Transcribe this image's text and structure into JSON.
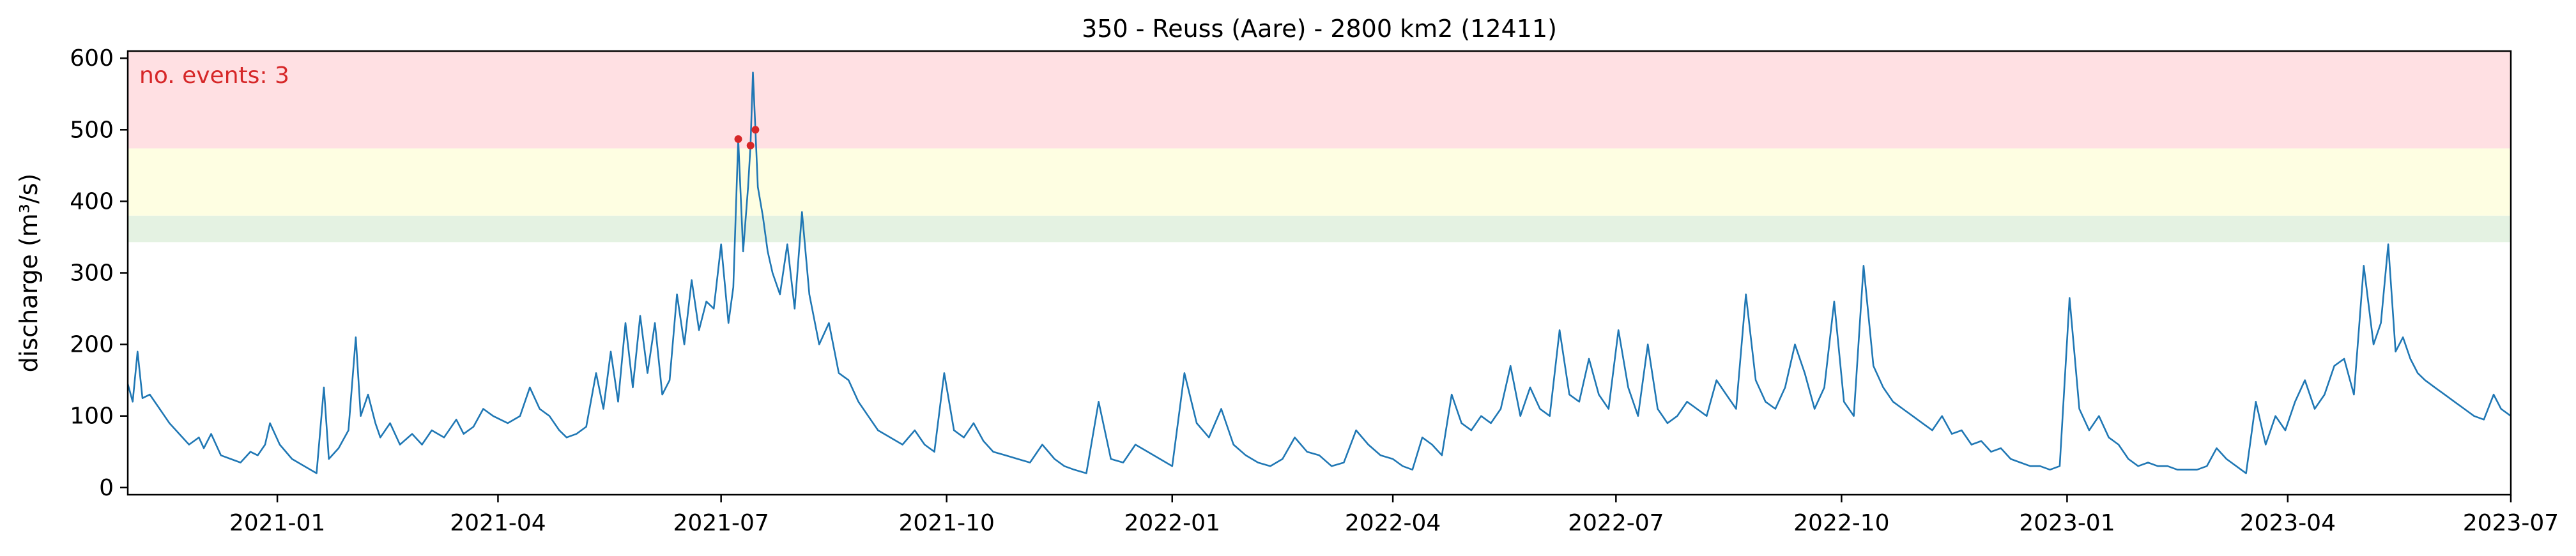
{
  "chart_data": {
    "type": "line",
    "title": "350 - Reuss (Aare) - 2800 km2 (12411)",
    "xlabel": "",
    "ylabel": "discharge (m³/s)",
    "xlim": [
      "2020-11-01",
      "2023-07-01"
    ],
    "ylim": [
      -10,
      610
    ],
    "x_ticks": [
      "2021-01",
      "2021-04",
      "2021-07",
      "2021-10",
      "2022-01",
      "2022-04",
      "2022-07",
      "2022-10",
      "2023-01",
      "2023-04",
      "2023-07"
    ],
    "y_ticks": [
      "0",
      "100",
      "200",
      "300",
      "400",
      "500",
      "600"
    ],
    "annotation": "no. events: 3",
    "grid": false,
    "colors": {
      "line": "#1f77b4",
      "events": "#d62728",
      "band_high": "#ffe0e3",
      "band_mid": "#fefee2",
      "band_low": "#e4f2e2"
    },
    "threshold_bands": [
      {
        "level": "low",
        "from": 343,
        "to": 380
      },
      {
        "level": "mid",
        "from": 380,
        "to": 474
      },
      {
        "level": "high",
        "from": 474,
        "to": 610
      }
    ],
    "events": [
      {
        "x": "2021-07-08",
        "y": 487
      },
      {
        "x": "2021-07-13",
        "y": 478
      },
      {
        "x": "2021-07-15",
        "y": 500
      }
    ],
    "series": [
      {
        "x": [
          "2020-11-01",
          "2020-11-03",
          "2020-11-05",
          "2020-11-07",
          "2020-11-10",
          "2020-11-14",
          "2020-11-18",
          "2020-11-22",
          "2020-11-26",
          "2020-11-30",
          "2020-12-02",
          "2020-12-05",
          "2020-12-09",
          "2020-12-13",
          "2020-12-17",
          "2020-12-21",
          "2020-12-24",
          "2020-12-27",
          "2020-12-29",
          "2021-01-02",
          "2021-01-07",
          "2021-01-12",
          "2021-01-17",
          "2021-01-20",
          "2021-01-22",
          "2021-01-26",
          "2021-01-30",
          "2021-02-02",
          "2021-02-04",
          "2021-02-07",
          "2021-02-10",
          "2021-02-12",
          "2021-02-16",
          "2021-02-20",
          "2021-02-25",
          "2021-03-01",
          "2021-03-05",
          "2021-03-10",
          "2021-03-15",
          "2021-03-18",
          "2021-03-22",
          "2021-03-26",
          "2021-03-30",
          "2021-04-05",
          "2021-04-10",
          "2021-04-14",
          "2021-04-18",
          "2021-04-22",
          "2021-04-26",
          "2021-04-29",
          "2021-05-03",
          "2021-05-07",
          "2021-05-11",
          "2021-05-14",
          "2021-05-17",
          "2021-05-20",
          "2021-05-23",
          "2021-05-26",
          "2021-05-29",
          "2021-06-01",
          "2021-06-04",
          "2021-06-07",
          "2021-06-10",
          "2021-06-13",
          "2021-06-16",
          "2021-06-19",
          "2021-06-22",
          "2021-06-25",
          "2021-06-28",
          "2021-07-01",
          "2021-07-04",
          "2021-07-06",
          "2021-07-08",
          "2021-07-10",
          "2021-07-12",
          "2021-07-13",
          "2021-07-14",
          "2021-07-15",
          "2021-07-16",
          "2021-07-18",
          "2021-07-20",
          "2021-07-22",
          "2021-07-25",
          "2021-07-28",
          "2021-07-31",
          "2021-08-03",
          "2021-08-06",
          "2021-08-10",
          "2021-08-14",
          "2021-08-18",
          "2021-08-22",
          "2021-08-26",
          "2021-08-30",
          "2021-09-03",
          "2021-09-08",
          "2021-09-13",
          "2021-09-18",
          "2021-09-22",
          "2021-09-26",
          "2021-09-30",
          "2021-10-04",
          "2021-10-08",
          "2021-10-12",
          "2021-10-16",
          "2021-10-20",
          "2021-10-25",
          "2021-10-30",
          "2021-11-04",
          "2021-11-09",
          "2021-11-14",
          "2021-11-18",
          "2021-11-22",
          "2021-11-27",
          "2021-12-02",
          "2021-12-07",
          "2021-12-12",
          "2021-12-17",
          "2021-12-22",
          "2021-12-27",
          "2022-01-01",
          "2022-01-06",
          "2022-01-11",
          "2022-01-16",
          "2022-01-21",
          "2022-01-26",
          "2022-01-31",
          "2022-02-05",
          "2022-02-10",
          "2022-02-15",
          "2022-02-20",
          "2022-02-25",
          "2022-03-02",
          "2022-03-07",
          "2022-03-12",
          "2022-03-17",
          "2022-03-22",
          "2022-03-27",
          "2022-04-01",
          "2022-04-05",
          "2022-04-09",
          "2022-04-13",
          "2022-04-17",
          "2022-04-21",
          "2022-04-25",
          "2022-04-29",
          "2022-05-03",
          "2022-05-07",
          "2022-05-11",
          "2022-05-15",
          "2022-05-19",
          "2022-05-23",
          "2022-05-27",
          "2022-05-31",
          "2022-06-04",
          "2022-06-08",
          "2022-06-12",
          "2022-06-16",
          "2022-06-20",
          "2022-06-24",
          "2022-06-28",
          "2022-07-02",
          "2022-07-06",
          "2022-07-10",
          "2022-07-14",
          "2022-07-18",
          "2022-07-22",
          "2022-07-26",
          "2022-07-30",
          "2022-08-03",
          "2022-08-07",
          "2022-08-11",
          "2022-08-15",
          "2022-08-19",
          "2022-08-23",
          "2022-08-27",
          "2022-08-31",
          "2022-09-04",
          "2022-09-08",
          "2022-09-12",
          "2022-09-16",
          "2022-09-20",
          "2022-09-24",
          "2022-09-28",
          "2022-10-02",
          "2022-10-06",
          "2022-10-10",
          "2022-10-14",
          "2022-10-18",
          "2022-10-22",
          "2022-10-26",
          "2022-10-30",
          "2022-11-03",
          "2022-11-07",
          "2022-11-11",
          "2022-11-15",
          "2022-11-19",
          "2022-11-23",
          "2022-11-27",
          "2022-12-01",
          "2022-12-05",
          "2022-12-09",
          "2022-12-13",
          "2022-12-17",
          "2022-12-21",
          "2022-12-25",
          "2022-12-29",
          "2023-01-02",
          "2023-01-06",
          "2023-01-10",
          "2023-01-14",
          "2023-01-18",
          "2023-01-22",
          "2023-01-26",
          "2023-01-30",
          "2023-02-03",
          "2023-02-07",
          "2023-02-11",
          "2023-02-15",
          "2023-02-19",
          "2023-02-23",
          "2023-02-27",
          "2023-03-03",
          "2023-03-07",
          "2023-03-11",
          "2023-03-15",
          "2023-03-19",
          "2023-03-23",
          "2023-03-27",
          "2023-03-31",
          "2023-04-04",
          "2023-04-08",
          "2023-04-12",
          "2023-04-16",
          "2023-04-20",
          "2023-04-24",
          "2023-04-28",
          "2023-05-02",
          "2023-05-06",
          "2023-05-09",
          "2023-05-12",
          "2023-05-15",
          "2023-05-18",
          "2023-05-21",
          "2023-05-24",
          "2023-05-27",
          "2023-05-31",
          "2023-06-04",
          "2023-06-08",
          "2023-06-12",
          "2023-06-16",
          "2023-06-20",
          "2023-06-24",
          "2023-06-27",
          "2023-07-01"
        ],
        "values": [
          145,
          120,
          190,
          125,
          130,
          110,
          90,
          75,
          60,
          70,
          55,
          75,
          45,
          40,
          35,
          50,
          45,
          60,
          90,
          60,
          40,
          30,
          20,
          140,
          40,
          55,
          80,
          210,
          100,
          130,
          90,
          70,
          90,
          60,
          75,
          60,
          80,
          70,
          95,
          75,
          85,
          110,
          100,
          90,
          100,
          140,
          110,
          100,
          80,
          70,
          75,
          85,
          160,
          110,
          190,
          120,
          230,
          140,
          240,
          160,
          230,
          130,
          150,
          270,
          200,
          290,
          220,
          260,
          250,
          340,
          230,
          280,
          487,
          330,
          420,
          478,
          580,
          500,
          420,
          380,
          330,
          300,
          270,
          340,
          250,
          385,
          270,
          200,
          230,
          160,
          150,
          120,
          100,
          80,
          70,
          60,
          80,
          60,
          50,
          160,
          80,
          70,
          90,
          65,
          50,
          45,
          40,
          35,
          60,
          40,
          30,
          25,
          20,
          120,
          40,
          35,
          60,
          50,
          40,
          30,
          160,
          90,
          70,
          110,
          60,
          45,
          35,
          30,
          40,
          70,
          50,
          45,
          30,
          35,
          80,
          60,
          45,
          40,
          30,
          25,
          70,
          60,
          45,
          130,
          90,
          80,
          100,
          90,
          110,
          170,
          100,
          140,
          110,
          100,
          220,
          130,
          120,
          180,
          130,
          110,
          220,
          140,
          100,
          200,
          110,
          90,
          100,
          120,
          110,
          100,
          150,
          130,
          110,
          270,
          150,
          120,
          110,
          140,
          200,
          160,
          110,
          140,
          260,
          120,
          100,
          310,
          170,
          140,
          120,
          110,
          100,
          90,
          80,
          100,
          75,
          80,
          60,
          65,
          50,
          55,
          40,
          35,
          30,
          30,
          25,
          30,
          265,
          110,
          80,
          100,
          70,
          60,
          40,
          30,
          35,
          30,
          30,
          25,
          25,
          25,
          30,
          55,
          40,
          30,
          20,
          120,
          60,
          100,
          80,
          120,
          150,
          110,
          130,
          170,
          180,
          130,
          310,
          200,
          230,
          340,
          190,
          210,
          180,
          160,
          150,
          140,
          130,
          120,
          110,
          100,
          95,
          130,
          110,
          100
        ]
      }
    ]
  }
}
